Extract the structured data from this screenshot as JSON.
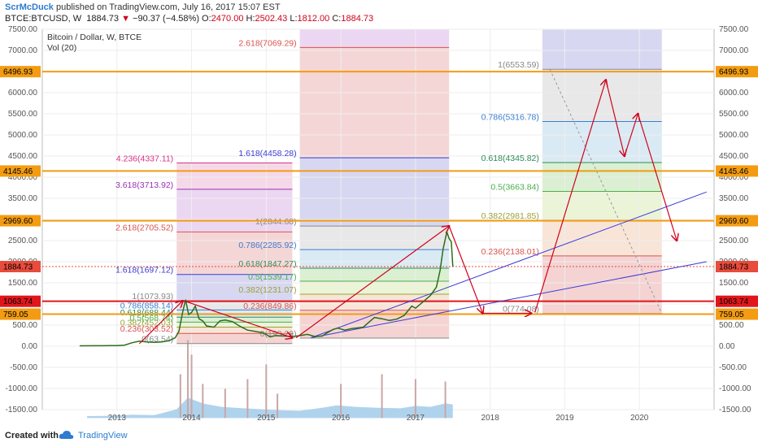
{
  "header": {
    "author": "ScrMcDuck",
    "published": "published on TradingView.com, July 16, 2017 15:07 EST",
    "symbol": "BTCE:BTCUSD, W",
    "price": "1884.73",
    "arrow": "▼",
    "change": "−90.37 (−4.58%)",
    "o_label": "O:",
    "o_val": "2470.00",
    "h_label": "H:",
    "h_val": "2502.43",
    "l_label": "L:",
    "l_val": "1812.00",
    "c_label": "C:",
    "c_val": "1884.73"
  },
  "footer": {
    "created": "Created with",
    "brand": "TradingView"
  },
  "chart_data": {
    "type": "line",
    "title": "Bitcoin / Dollar, W, BTCE",
    "volume_label": "Vol (20)",
    "y_axis": {
      "min": -1500,
      "max": 7500,
      "step": 500,
      "left": true,
      "right": true
    },
    "x_axis": {
      "labels": [
        "2013",
        "2014",
        "2015",
        "2016",
        "2017",
        "2018",
        "2019",
        "2020"
      ],
      "years": [
        2013,
        2014,
        2015,
        2016,
        2017,
        2018,
        2019,
        2020
      ]
    },
    "colors": {
      "price": "#2a6e1a",
      "up_arrow": "#d0021b",
      "trend": "#3b3bd6",
      "hline_orange": "#f39c12",
      "hline_red": "#e0161b",
      "tag_orange": "#f39c12",
      "tag_red": "#e0161b",
      "current": "#e74c3c"
    },
    "price_series": [
      [
        2012.5,
        10
      ],
      [
        2012.7,
        11
      ],
      [
        2012.9,
        13
      ],
      [
        2013.0,
        15
      ],
      [
        2013.1,
        25
      ],
      [
        2013.2,
        80
      ],
      [
        2013.3,
        120
      ],
      [
        2013.4,
        100
      ],
      [
        2013.5,
        90
      ],
      [
        2013.6,
        100
      ],
      [
        2013.7,
        130
      ],
      [
        2013.78,
        200
      ],
      [
        2013.83,
        350
      ],
      [
        2013.88,
        800
      ],
      [
        2013.92,
        1100
      ],
      [
        2013.96,
        750
      ],
      [
        2014.0,
        800
      ],
      [
        2014.05,
        950
      ],
      [
        2014.1,
        650
      ],
      [
        2014.15,
        600
      ],
      [
        2014.2,
        480
      ],
      [
        2014.3,
        450
      ],
      [
        2014.38,
        600
      ],
      [
        2014.45,
        620
      ],
      [
        2014.55,
        580
      ],
      [
        2014.65,
        470
      ],
      [
        2014.75,
        380
      ],
      [
        2014.85,
        350
      ],
      [
        2014.95,
        320
      ],
      [
        2015.0,
        280
      ],
      [
        2015.05,
        220
      ],
      [
        2015.12,
        250
      ],
      [
        2015.25,
        240
      ],
      [
        2015.35,
        230
      ],
      [
        2015.45,
        250
      ],
      [
        2015.55,
        280
      ],
      [
        2015.65,
        230
      ],
      [
        2015.75,
        240
      ],
      [
        2015.83,
        330
      ],
      [
        2015.9,
        400
      ],
      [
        2015.96,
        430
      ],
      [
        2016.05,
        380
      ],
      [
        2016.15,
        420
      ],
      [
        2016.3,
        450
      ],
      [
        2016.45,
        680
      ],
      [
        2016.55,
        650
      ],
      [
        2016.65,
        610
      ],
      [
        2016.75,
        640
      ],
      [
        2016.85,
        730
      ],
      [
        2016.95,
        950
      ],
      [
        2017.0,
        900
      ],
      [
        2017.1,
        1050
      ],
      [
        2017.2,
        1200
      ],
      [
        2017.28,
        1400
      ],
      [
        2017.33,
        1800
      ],
      [
        2017.37,
        2300
      ],
      [
        2017.42,
        2700
      ],
      [
        2017.45,
        2550
      ],
      [
        2017.48,
        2470
      ],
      [
        2017.5,
        1880
      ]
    ],
    "volume_series": [
      [
        2012.6,
        40
      ],
      [
        2012.9,
        45
      ],
      [
        2013.2,
        70
      ],
      [
        2013.5,
        60
      ],
      [
        2013.8,
        180
      ],
      [
        2013.95,
        420
      ],
      [
        2014.15,
        300
      ],
      [
        2014.4,
        230
      ],
      [
        2014.7,
        200
      ],
      [
        2014.95,
        180
      ],
      [
        2015.2,
        160
      ],
      [
        2015.45,
        150
      ],
      [
        2015.7,
        200
      ],
      [
        2015.95,
        260
      ],
      [
        2016.2,
        230
      ],
      [
        2016.5,
        210
      ],
      [
        2016.8,
        200
      ],
      [
        2017.0,
        250
      ],
      [
        2017.2,
        230
      ],
      [
        2017.4,
        300
      ],
      [
        2017.5,
        280
      ]
    ],
    "volume_spikes": [
      [
        2013.85,
        900
      ],
      [
        2013.95,
        1600
      ],
      [
        2014.0,
        1300
      ],
      [
        2014.15,
        700
      ],
      [
        2014.45,
        600
      ],
      [
        2014.75,
        800
      ],
      [
        2015.0,
        1100
      ],
      [
        2015.15,
        500
      ],
      [
        2016.0,
        700
      ],
      [
        2016.55,
        900
      ],
      [
        2017.0,
        800
      ],
      [
        2017.4,
        750
      ]
    ],
    "fib_groups": [
      {
        "x0": 2013.8,
        "x1": 2015.35,
        "levels": [
          {
            "r": "0",
            "v": "63.54",
            "y": 63.54,
            "c": "#888",
            "lbl": "0(63.54)"
          },
          {
            "r": "0.236",
            "v": "303.52",
            "y": 303.52,
            "c": "#d9534f",
            "lbl": "0.236(303.52)"
          },
          {
            "r": "0.382",
            "v": "452.03",
            "y": 452,
            "c": "#9aa334",
            "lbl": "0.382(452.03)"
          },
          {
            "r": "0.5",
            "v": "568.74",
            "y": 568.7,
            "c": "#4cae4c",
            "lbl": "0.5(568.74)"
          },
          {
            "r": "0.618",
            "v": "688.44",
            "y": 688.4,
            "c": "#2e8b57",
            "lbl": "0.618(688.44)"
          },
          {
            "r": "0.786",
            "v": "858.14",
            "y": 858.14,
            "c": "#3a7ed0",
            "lbl": "0.786(858.14)"
          },
          {
            "r": "1",
            "v": "1073.93",
            "y": 1073.93,
            "c": "#888",
            "lbl": "1(1073.93)"
          },
          {
            "r": "1.618",
            "v": "1697.12",
            "y": 1697.12,
            "c": "#3b3bd6",
            "lbl": "1.618(1697.12)"
          },
          {
            "r": "2.618",
            "v": "2705.52",
            "y": 2705.52,
            "c": "#d9534f",
            "lbl": "2.618(2705.52)"
          },
          {
            "r": "3.618",
            "v": "3713.92",
            "y": 3713.92,
            "c": "#9b30b5",
            "lbl": "3.618(3713.92)"
          },
          {
            "r": "4.236",
            "v": "4337.11",
            "y": 4337.11,
            "c": "#d63384",
            "lbl": "4.236(4337.11)"
          }
        ]
      },
      {
        "x0": 2015.45,
        "x1": 2017.45,
        "levels": [
          {
            "r": "0",
            "v": "193.29",
            "y": 193,
            "c": "#888",
            "lbl": "0(193.29)"
          },
          {
            "r": "0.236",
            "v": "849.86",
            "y": 849.86,
            "c": "#d9534f",
            "lbl": "0.236(849.86)"
          },
          {
            "r": "0.382",
            "v": "1231.07",
            "y": 1231.07,
            "c": "#9aa334",
            "lbl": "0.382(1231.07)"
          },
          {
            "r": "0.5",
            "v": "1539.17",
            "y": 1539.17,
            "c": "#4cae4c",
            "lbl": "0.5(1539.17)"
          },
          {
            "r": "0.618",
            "v": "1847.27",
            "y": 1847.27,
            "c": "#2e8b57",
            "lbl": "0.618(1847.27)"
          },
          {
            "r": "0.786",
            "v": "2285.92",
            "y": 2285.92,
            "c": "#3a7ed0",
            "lbl": "0.786(2285.92)"
          },
          {
            "r": "1",
            "v": "2844.68",
            "y": 2844.68,
            "c": "#888",
            "lbl": "1(2844.68)"
          },
          {
            "r": "1.618",
            "v": "4458.28",
            "y": 4458.28,
            "c": "#3b3bd6",
            "lbl": "1.618(4458.28)"
          },
          {
            "r": "2.618",
            "v": "7069.29",
            "y": 7069.29,
            "c": "#d9534f",
            "lbl": "2.618(7069.29)"
          }
        ]
      },
      {
        "x0": 2018.7,
        "x1": 2020.3,
        "levels": [
          {
            "r": "0",
            "v": "774.08",
            "y": 774.08,
            "c": "#888",
            "lbl": "0(774.08)"
          },
          {
            "r": "0.236",
            "v": "2138.01",
            "y": 2138.01,
            "c": "#d9534f",
            "lbl": "0.236(2138.01)"
          },
          {
            "r": "0.382",
            "v": "2981.85",
            "y": 2981.85,
            "c": "#9aa334",
            "lbl": "0.382(2981.85)"
          },
          {
            "r": "0.5",
            "v": "3663.84",
            "y": 3663.84,
            "c": "#4cae4c",
            "lbl": "0.5(3663.84)"
          },
          {
            "r": "0.618",
            "v": "4345.82",
            "y": 4345.82,
            "c": "#2e8b57",
            "lbl": "0.618(4345.82)"
          },
          {
            "r": "0.786",
            "v": "5316.78",
            "y": 5316.78,
            "c": "#3a7ed0",
            "lbl": "0.786(5316.78)"
          },
          {
            "r": "1",
            "v": "6553.59",
            "y": 6553.59,
            "c": "#888",
            "lbl": "1(6553.59)"
          }
        ]
      }
    ],
    "hlines": [
      {
        "y": 6496.93,
        "label": "6496.93",
        "color": "#f39c12"
      },
      {
        "y": 4145.46,
        "label": "4145.46",
        "color": "#f39c12"
      },
      {
        "y": 2969.6,
        "label": "2969.60",
        "color": "#f39c12"
      },
      {
        "y": 1884.73,
        "label": "1884.73",
        "color": "#e74c3c",
        "dotted": true
      },
      {
        "y": 1063.74,
        "label": "1063.74",
        "color": "#e0161b"
      },
      {
        "y": 759.05,
        "label": "759.05",
        "color": "#f39c12"
      }
    ],
    "trend_lines": [
      [
        [
          2015.6,
          200
        ],
        [
          2020.9,
          3650
        ]
      ],
      [
        [
          2015.6,
          200
        ],
        [
          2020.9,
          2000
        ]
      ]
    ],
    "red_arrows": [
      [
        [
          2013.3,
          60
        ],
        [
          2013.88,
          1073
        ]
      ],
      [
        [
          2013.9,
          1073
        ],
        [
          2015.35,
          200
        ]
      ],
      [
        [
          2015.4,
          200
        ],
        [
          2017.45,
          2844
        ]
      ],
      [
        [
          2017.45,
          2844
        ],
        [
          2017.9,
          780
        ]
      ],
      [
        [
          2017.9,
          780
        ],
        [
          2018.55,
          780
        ]
      ],
      [
        [
          2018.6,
          800
        ],
        [
          2019.55,
          6300
        ]
      ],
      [
        [
          2019.55,
          6300
        ],
        [
          2019.8,
          4500
        ]
      ],
      [
        [
          2019.8,
          4500
        ],
        [
          2019.98,
          5500
        ]
      ],
      [
        [
          2019.98,
          5500
        ],
        [
          2020.5,
          2500
        ]
      ]
    ],
    "dashed_projection": [
      [
        2018.8,
        6553
      ],
      [
        2020.3,
        774
      ]
    ]
  }
}
